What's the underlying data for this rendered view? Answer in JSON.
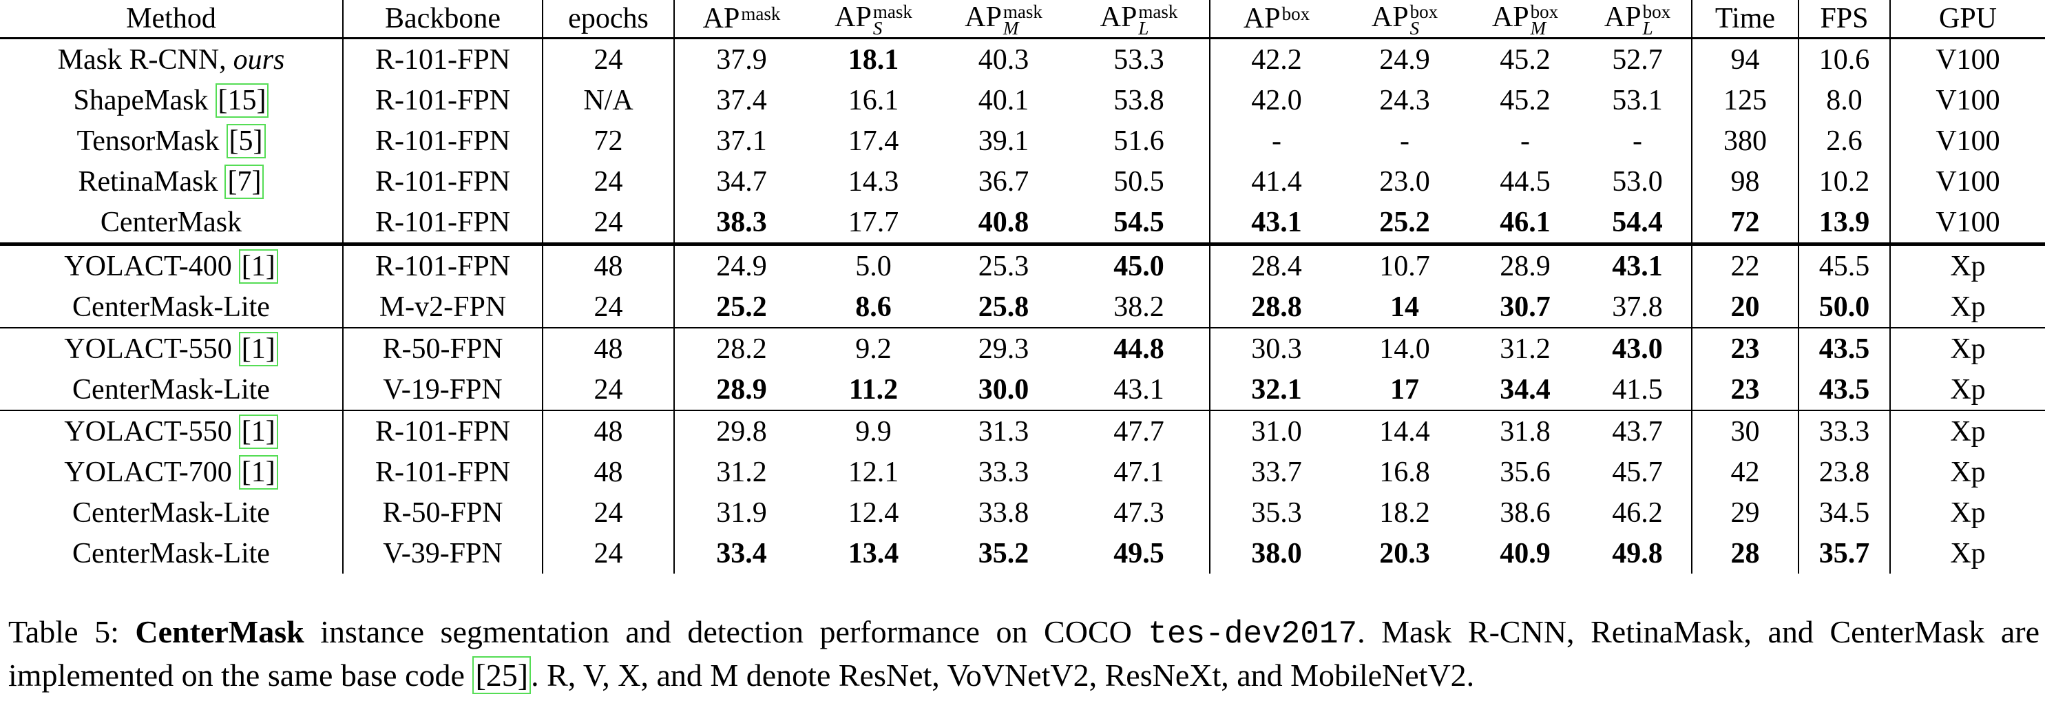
{
  "table": {
    "header": [
      "Method",
      "Backbone",
      "epochs",
      {
        "base": "AP",
        "sup": "mask"
      },
      {
        "base": "AP",
        "sup": "mask",
        "sub": "S"
      },
      {
        "base": "AP",
        "sup": "mask",
        "sub": "M"
      },
      {
        "base": "AP",
        "sup": "mask",
        "sub": "L"
      },
      {
        "base": "AP",
        "sup": "box"
      },
      {
        "base": "AP",
        "sup": "box",
        "sub": "S"
      },
      {
        "base": "AP",
        "sup": "box",
        "sub": "M"
      },
      {
        "base": "AP",
        "sup": "box",
        "sub": "L"
      },
      "Time",
      "FPS",
      "GPU"
    ],
    "groups": [
      {
        "rows": [
          {
            "cells": [
              {
                "name": "Mask R-CNN,",
                "emph": "ours"
              },
              "R-101-FPN",
              "24",
              "37.9",
              "18.1",
              "40.3",
              "53.3",
              "42.2",
              "24.9",
              "45.2",
              "52.7",
              "94",
              "10.6",
              "V100"
            ],
            "bold": [
              4
            ]
          },
          {
            "cells": [
              {
                "name": "ShapeMask",
                "cite": "[15]"
              },
              "R-101-FPN",
              "N/A",
              "37.4",
              "16.1",
              "40.1",
              "53.8",
              "42.0",
              "24.3",
              "45.2",
              "53.1",
              "125",
              "8.0",
              "V100"
            ],
            "bold": []
          },
          {
            "cells": [
              {
                "name": "TensorMask",
                "cite": "[5]"
              },
              "R-101-FPN",
              "72",
              "37.1",
              "17.4",
              "39.1",
              "51.6",
              "-",
              "-",
              "-",
              "-",
              "380",
              "2.6",
              "V100"
            ],
            "bold": []
          },
          {
            "cells": [
              {
                "name": "RetinaMask",
                "cite": "[7]"
              },
              "R-101-FPN",
              "24",
              "34.7",
              "14.3",
              "36.7",
              "50.5",
              "41.4",
              "23.0",
              "44.5",
              "53.0",
              "98",
              "10.2",
              "V100"
            ],
            "bold": []
          },
          {
            "cells": [
              {
                "name": "CenterMask"
              },
              "R-101-FPN",
              "24",
              "38.3",
              "17.7",
              "40.8",
              "54.5",
              "43.1",
              "25.2",
              "46.1",
              "54.4",
              "72",
              "13.9",
              "V100"
            ],
            "bold": [
              3,
              5,
              6,
              7,
              8,
              9,
              10,
              11,
              12
            ]
          }
        ]
      },
      {
        "rows": [
          {
            "cells": [
              {
                "name": "YOLACT-400",
                "cite": "[1]"
              },
              "R-101-FPN",
              "48",
              "24.9",
              "5.0",
              "25.3",
              "45.0",
              "28.4",
              "10.7",
              "28.9",
              "43.1",
              "22",
              "45.5",
              "Xp"
            ],
            "bold": [
              6,
              10
            ]
          },
          {
            "cells": [
              {
                "name": "CenterMask-Lite"
              },
              "M-v2-FPN",
              "24",
              "25.2",
              "8.6",
              "25.8",
              "38.2",
              "28.8",
              "14",
              "30.7",
              "37.8",
              "20",
              "50.0",
              "Xp"
            ],
            "bold": [
              3,
              4,
              5,
              7,
              8,
              9,
              11,
              12
            ]
          }
        ]
      },
      {
        "rows": [
          {
            "cells": [
              {
                "name": "YOLACT-550",
                "cite": "[1]"
              },
              "R-50-FPN",
              "48",
              "28.2",
              "9.2",
              "29.3",
              "44.8",
              "30.3",
              "14.0",
              "31.2",
              "43.0",
              "23",
              "43.5",
              "Xp"
            ],
            "bold": [
              6,
              10,
              11,
              12
            ]
          },
          {
            "cells": [
              {
                "name": "CenterMask-Lite"
              },
              "V-19-FPN",
              "24",
              "28.9",
              "11.2",
              "30.0",
              "43.1",
              "32.1",
              "17",
              "34.4",
              "41.5",
              "23",
              "43.5",
              "Xp"
            ],
            "bold": [
              3,
              4,
              5,
              7,
              8,
              9,
              11,
              12
            ]
          }
        ]
      },
      {
        "rows": [
          {
            "cells": [
              {
                "name": "YOLACT-550",
                "cite": "[1]"
              },
              "R-101-FPN",
              "48",
              "29.8",
              "9.9",
              "31.3",
              "47.7",
              "31.0",
              "14.4",
              "31.8",
              "43.7",
              "30",
              "33.3",
              "Xp"
            ],
            "bold": []
          },
          {
            "cells": [
              {
                "name": "YOLACT-700",
                "cite": "[1]"
              },
              "R-101-FPN",
              "48",
              "31.2",
              "12.1",
              "33.3",
              "47.1",
              "33.7",
              "16.8",
              "35.6",
              "45.7",
              "42",
              "23.8",
              "Xp"
            ],
            "bold": []
          },
          {
            "cells": [
              {
                "name": "CenterMask-Lite"
              },
              "R-50-FPN",
              "24",
              "31.9",
              "12.4",
              "33.8",
              "47.3",
              "35.3",
              "18.2",
              "38.6",
              "46.2",
              "29",
              "34.5",
              "Xp"
            ],
            "bold": []
          },
          {
            "cells": [
              {
                "name": "CenterMask-Lite"
              },
              "V-39-FPN",
              "24",
              "33.4",
              "13.4",
              "35.2",
              "49.5",
              "38.0",
              "20.3",
              "40.9",
              "49.8",
              "28",
              "35.7",
              "Xp"
            ],
            "bold": [
              3,
              4,
              5,
              6,
              7,
              8,
              9,
              10,
              11,
              12
            ]
          }
        ]
      }
    ]
  },
  "caption": {
    "segments": [
      {
        "text": "Table 5: "
      },
      {
        "text": "CenterMask",
        "style": "bold"
      },
      {
        "text": " instance segmentation and detection performance on COCO "
      },
      {
        "text": "tes-dev2017",
        "style": "mono"
      },
      {
        "text": ". Mask R-CNN, RetinaMask, and CenterMask are implemented on the same base code "
      },
      {
        "text": "[25]",
        "style": "cite"
      },
      {
        "text": ". R, V, X, and M denote ResNet, VoVNetV2, ResNeXt, and MobileNetV2."
      }
    ]
  }
}
